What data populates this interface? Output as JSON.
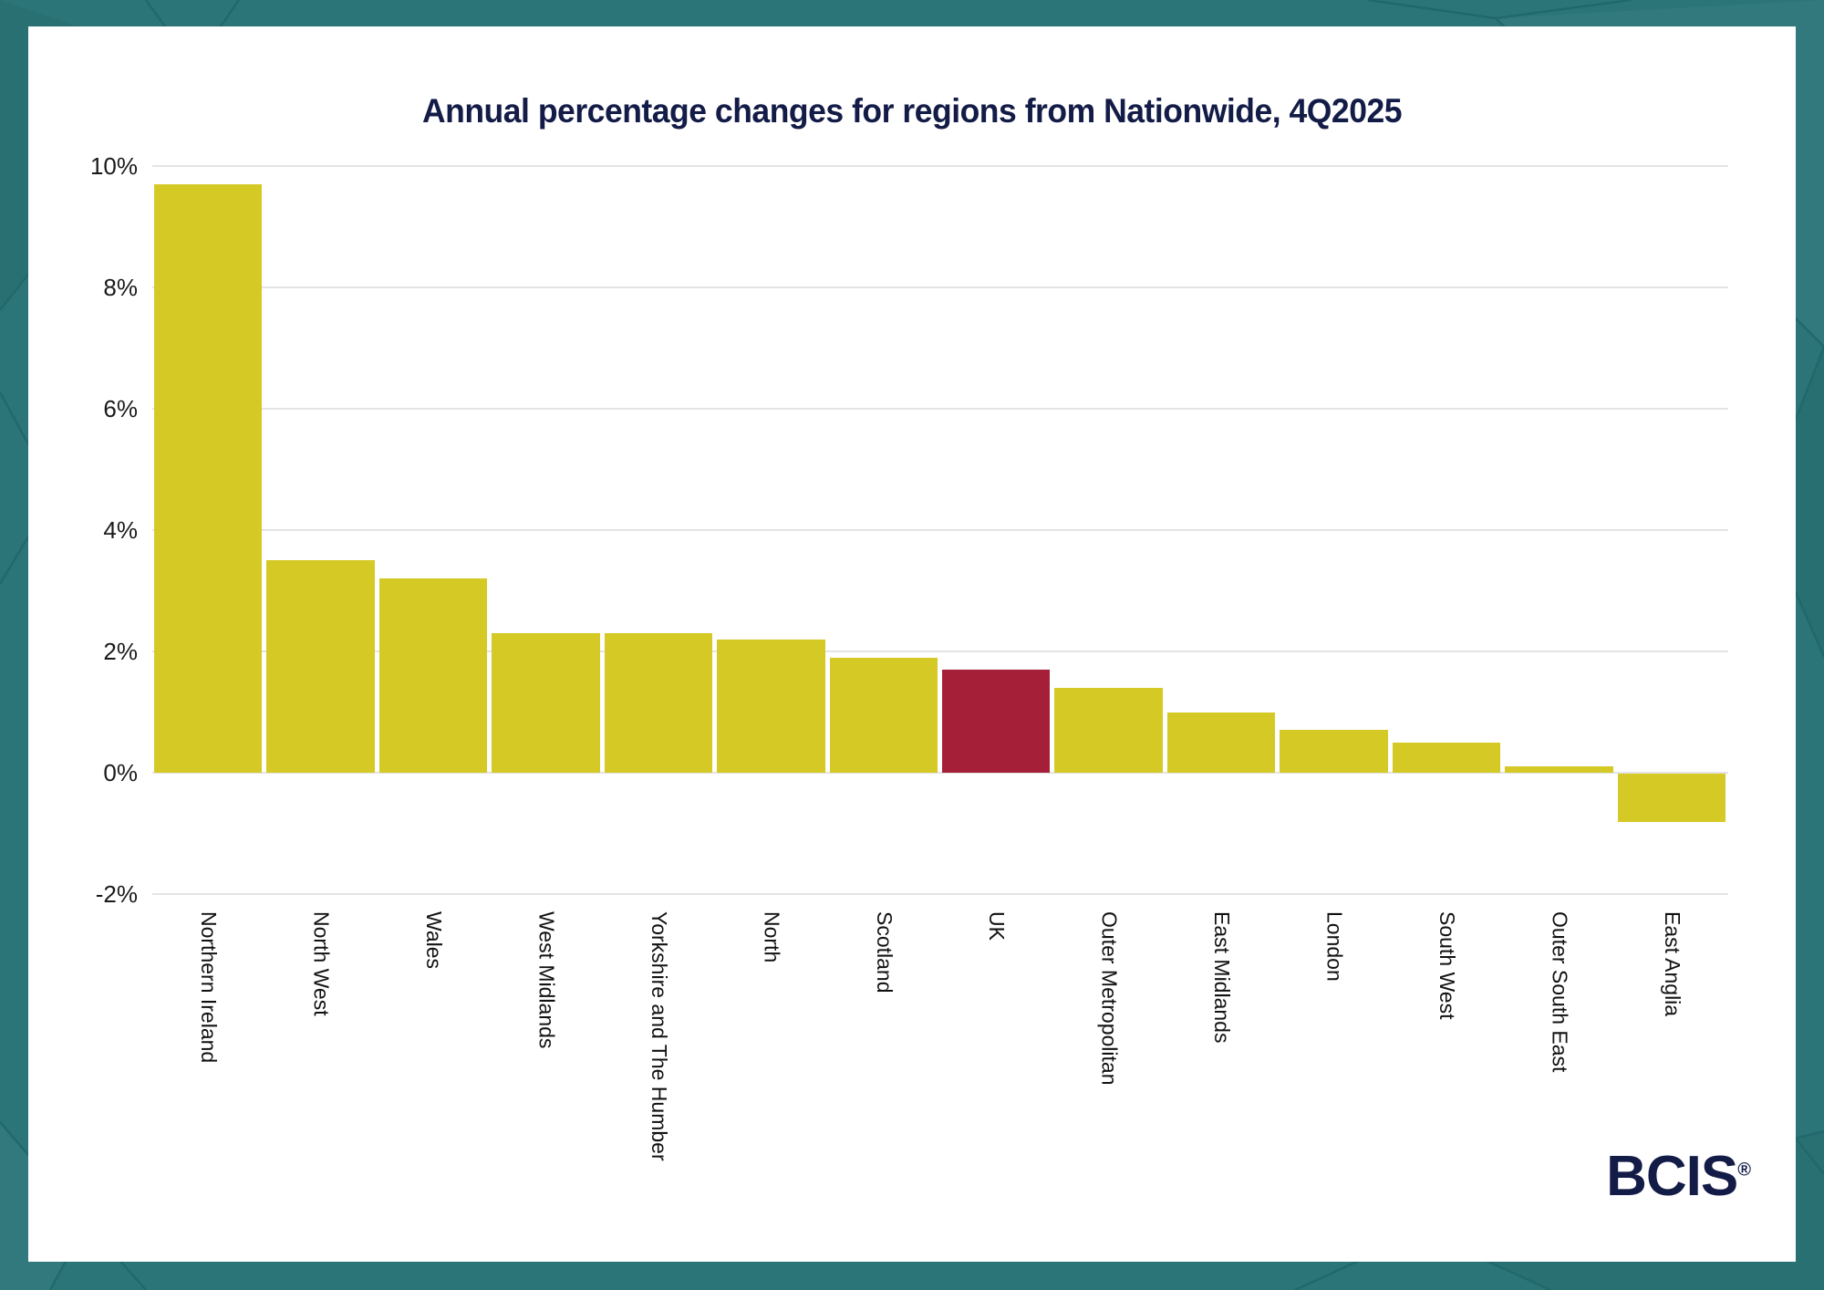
{
  "page": {
    "background_color": "#2b7578",
    "facet_line_color": "#20666a",
    "card_color": "#ffffff"
  },
  "chart_data": {
    "type": "bar",
    "title": "Annual percentage changes for regions from Nationwide, 4Q2025",
    "title_color": "#131b47",
    "unit": "%",
    "categories": [
      "Northern Ireland",
      "North West",
      "Wales",
      "West Midlands",
      "Yorkshire and The Humber",
      "North",
      "Scotland",
      "UK",
      "Outer Metropolitan",
      "East Midlands",
      "London",
      "South West",
      "Outer South East",
      "East Anglia"
    ],
    "values": [
      9.7,
      3.5,
      3.2,
      2.3,
      2.3,
      2.2,
      1.9,
      1.7,
      1.4,
      1.0,
      0.7,
      0.5,
      0.1,
      -0.8
    ],
    "bar_color": "#d5c926",
    "highlight_category": "UK",
    "highlight_color": "#a61f38",
    "ylim": [
      -2,
      10
    ],
    "yticks": [
      {
        "value": 10,
        "label": "10%"
      },
      {
        "value": 8,
        "label": "8%"
      },
      {
        "value": 6,
        "label": "6%"
      },
      {
        "value": 4,
        "label": "4%"
      },
      {
        "value": 2,
        "label": "2%"
      },
      {
        "value": 0,
        "label": "0%"
      },
      {
        "value": -2,
        "label": "-2%"
      }
    ],
    "grid": "horizontal",
    "gridline_color": "#e4e4e4",
    "tick_label_color": "#1a1a1a",
    "x_label_color": "#111111",
    "legend": "none",
    "x_label_rotation": "vertical-top-anchored"
  },
  "branding": {
    "logo_text": "BCIS",
    "registered_mark": "®",
    "logo_color": "#131b47"
  }
}
